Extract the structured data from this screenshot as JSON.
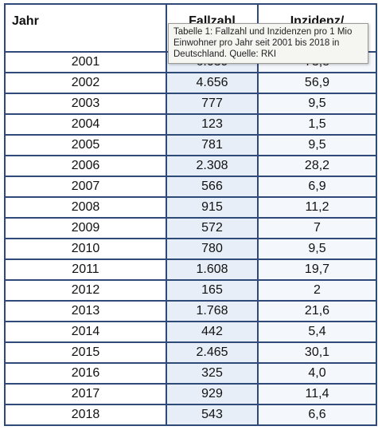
{
  "table": {
    "headers": [
      "Jahr",
      "Fallzahl",
      "Inzidenz/"
    ],
    "rows": [
      [
        "2001",
        "6.039",
        "73,8"
      ],
      [
        "2002",
        "4.656",
        "56,9"
      ],
      [
        "2003",
        "777",
        "9,5"
      ],
      [
        "2004",
        "123",
        "1,5"
      ],
      [
        "2005",
        "781",
        "9,5"
      ],
      [
        "2006",
        "2.308",
        "28,2"
      ],
      [
        "2007",
        "566",
        "6,9"
      ],
      [
        "2008",
        "915",
        "11,2"
      ],
      [
        "2009",
        "572",
        "7"
      ],
      [
        "2010",
        "780",
        "9,5"
      ],
      [
        "2011",
        "1.608",
        "19,7"
      ],
      [
        "2012",
        "165",
        "2"
      ],
      [
        "2013",
        "1.768",
        "21,6"
      ],
      [
        "2014",
        "442",
        "5,4"
      ],
      [
        "2015",
        "2.465",
        "30,1"
      ],
      [
        "2016",
        "325",
        "4,0"
      ],
      [
        "2017",
        "929",
        "11,4"
      ],
      [
        "2018",
        "543",
        "6,6"
      ]
    ]
  },
  "tooltip": {
    "text": "Tabelle 1: Fallzahl und Inzidenzen pro 1 Mio Einwohner pro Jahr seit 2001 bis 2018 in Deutschland. Quelle: RKI"
  },
  "colors": {
    "border": "#2f4a78",
    "col2_bg": "#e7eef8",
    "col3_bg": "#f4f7fb",
    "tooltip_bg": "#f5f5f2"
  }
}
